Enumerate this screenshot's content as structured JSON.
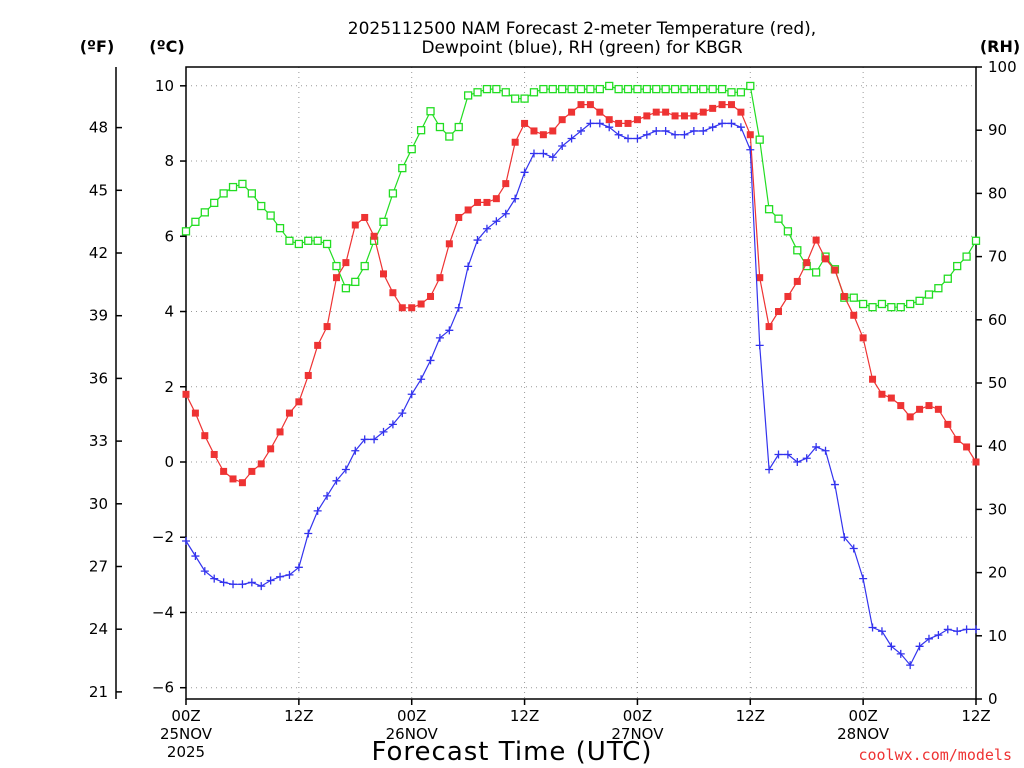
{
  "chart_data": {
    "type": "line",
    "title": [
      "2025112500 NAM Forecast 2-meter Temperature (red),",
      "Dewpoint (blue), RH (green) for KBGR"
    ],
    "left_unit_f": "(ºF)",
    "left_unit_c": "(ºC)",
    "right_unit": "(RH)",
    "xlabel": "Forecast Time (UTC)",
    "credit": "coolwx.com/models",
    "x_range_hours": [
      0,
      84
    ],
    "x_ticks": [
      {
        "hour": 0,
        "lines": [
          "00Z",
          "25NOV",
          "2025"
        ]
      },
      {
        "hour": 12,
        "lines": [
          "12Z"
        ]
      },
      {
        "hour": 24,
        "lines": [
          "00Z",
          "26NOV"
        ]
      },
      {
        "hour": 36,
        "lines": [
          "12Z"
        ]
      },
      {
        "hour": 48,
        "lines": [
          "00Z",
          "27NOV"
        ]
      },
      {
        "hour": 60,
        "lines": [
          "12Z"
        ]
      },
      {
        "hour": 72,
        "lines": [
          "00Z",
          "28NOV"
        ]
      },
      {
        "hour": 84,
        "lines": [
          "12Z"
        ]
      }
    ],
    "y_left_c": {
      "range": [
        -6.3,
        10.5
      ],
      "ticks": [
        -6,
        -4,
        -2,
        0,
        2,
        4,
        6,
        8,
        10
      ]
    },
    "y_left_f": {
      "ticks": [
        21,
        24,
        27,
        30,
        33,
        36,
        39,
        42,
        45,
        48
      ]
    },
    "y_right_rh": {
      "range": [
        0,
        100
      ],
      "ticks": [
        0,
        10,
        20,
        30,
        40,
        50,
        60,
        70,
        80,
        90,
        100
      ]
    },
    "grid": true,
    "hours": [
      0,
      1,
      2,
      3,
      4,
      5,
      6,
      7,
      8,
      9,
      10,
      11,
      12,
      13,
      14,
      15,
      16,
      17,
      18,
      19,
      20,
      21,
      22,
      23,
      24,
      25,
      26,
      27,
      28,
      29,
      30,
      31,
      32,
      33,
      34,
      35,
      36,
      37,
      38,
      39,
      40,
      41,
      42,
      43,
      44,
      45,
      46,
      47,
      48,
      49,
      50,
      51,
      52,
      53,
      54,
      55,
      56,
      57,
      58,
      59,
      60,
      61,
      62,
      63,
      64,
      65,
      66,
      67,
      68,
      69,
      70,
      71,
      72,
      73,
      74,
      75,
      76,
      77,
      78,
      79,
      80,
      81,
      82,
      83,
      84
    ],
    "series": [
      {
        "name": "Temperature",
        "unit": "C",
        "color": "#ee3333",
        "marker": "filled-square",
        "values": [
          1.8,
          1.3,
          0.7,
          0.2,
          -0.25,
          -0.45,
          -0.55,
          -0.25,
          -0.05,
          0.35,
          0.8,
          1.3,
          1.6,
          2.3,
          3.1,
          3.6,
          4.9,
          5.3,
          6.3,
          6.5,
          6.0,
          5.0,
          4.5,
          4.1,
          4.1,
          4.2,
          4.4,
          4.9,
          5.8,
          6.5,
          6.7,
          6.9,
          6.9,
          7.0,
          7.4,
          8.5,
          9.0,
          8.8,
          8.7,
          8.8,
          9.1,
          9.3,
          9.5,
          9.5,
          9.3,
          9.1,
          9.0,
          9.0,
          9.1,
          9.2,
          9.3,
          9.3,
          9.2,
          9.2,
          9.2,
          9.3,
          9.4,
          9.5,
          9.5,
          9.3,
          8.7,
          4.9,
          3.6,
          4.0,
          4.4,
          4.8,
          5.3,
          5.9,
          5.4,
          5.1,
          4.4,
          3.9,
          3.3,
          2.2,
          1.8,
          1.7,
          1.5,
          1.2,
          1.4,
          1.5,
          1.4,
          1.0,
          0.6,
          0.4,
          0.0
        ]
      },
      {
        "name": "Dewpoint",
        "unit": "C",
        "color": "#3333ee",
        "marker": "plus",
        "values": [
          -2.1,
          -2.5,
          -2.9,
          -3.1,
          -3.2,
          -3.25,
          -3.25,
          -3.2,
          -3.3,
          -3.15,
          -3.05,
          -3.0,
          -2.8,
          -1.9,
          -1.3,
          -0.9,
          -0.5,
          -0.2,
          0.3,
          0.6,
          0.6,
          0.8,
          1.0,
          1.3,
          1.8,
          2.2,
          2.7,
          3.3,
          3.5,
          4.1,
          5.2,
          5.9,
          6.2,
          6.4,
          6.6,
          7.0,
          7.7,
          8.2,
          8.2,
          8.1,
          8.4,
          8.6,
          8.8,
          9.0,
          9.0,
          8.9,
          8.7,
          8.6,
          8.6,
          8.7,
          8.8,
          8.8,
          8.7,
          8.7,
          8.8,
          8.8,
          8.9,
          9.0,
          9.0,
          8.9,
          8.3,
          3.1,
          -0.2,
          0.2,
          0.2,
          0.0,
          0.1,
          0.4,
          0.3,
          -0.6,
          -2.0,
          -2.3,
          -3.1,
          -4.4,
          -4.5,
          -4.9,
          -5.1,
          -5.4,
          -4.9,
          -4.7,
          -4.6,
          -4.45,
          -4.5,
          -4.45,
          -4.45
        ]
      },
      {
        "name": "RH",
        "unit": "%",
        "color": "#22dd22",
        "marker": "open-square",
        "values": [
          74,
          75.5,
          77,
          78.5,
          80,
          81,
          81.5,
          80,
          78,
          76.5,
          74.5,
          72.5,
          72,
          72.5,
          72.5,
          72,
          68.5,
          65,
          66,
          68.5,
          72.5,
          75.5,
          80,
          84,
          87,
          90,
          93,
          90.5,
          89,
          90.5,
          95.5,
          96,
          96.5,
          96.5,
          96,
          95,
          95,
          96,
          96.5,
          96.5,
          96.5,
          96.5,
          96.5,
          96.5,
          96.5,
          97,
          96.5,
          96.5,
          96.5,
          96.5,
          96.5,
          96.5,
          96.5,
          96.5,
          96.5,
          96.5,
          96.5,
          96.5,
          96,
          96,
          97,
          88.5,
          77.5,
          76,
          74,
          71,
          68.5,
          67.5,
          70,
          68,
          63.5,
          63.5,
          62.5,
          62,
          62.5,
          62,
          62,
          62.5,
          63,
          64,
          65,
          66.5,
          68.5,
          70,
          72.5
        ]
      }
    ]
  }
}
